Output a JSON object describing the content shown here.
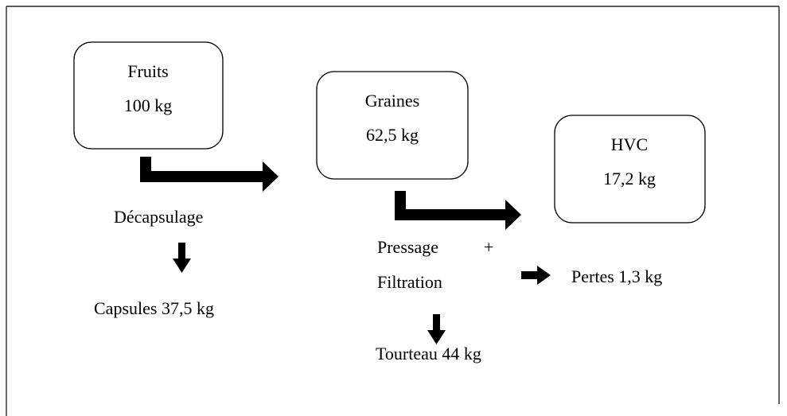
{
  "nodes": [
    {
      "label": "Fruits",
      "value": "100 kg"
    },
    {
      "label": "Graines",
      "value": "62,5 kg"
    },
    {
      "label": "HVC",
      "value": "17,2 kg"
    }
  ],
  "steps": [
    {
      "label": "Décapsulage",
      "output": "Capsules 37,5 kg"
    },
    {
      "label": "Pressage",
      "plus": "+",
      "label2": "Filtration",
      "output": "Tourteau 44 kg",
      "loss": "Pertes 1,3 kg"
    }
  ]
}
